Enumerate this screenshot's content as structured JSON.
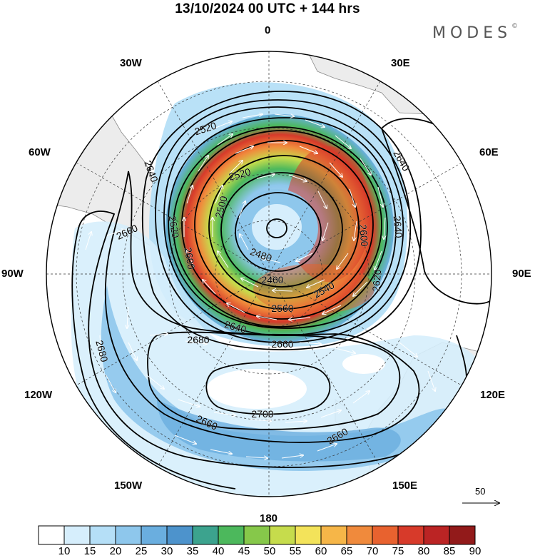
{
  "title": "13/10/2024  00 UTC  + 144 hrs",
  "brand": "MODES",
  "brand_mark": "©",
  "longitude_labels": {
    "lon_0": "0",
    "lon_30e": "30E",
    "lon_60e": "60E",
    "lon_90e": "90E",
    "lon_120e": "120E",
    "lon_150e": "150E",
    "lon_180": "180",
    "lon_150w": "150W",
    "lon_120w": "120W",
    "lon_90w": "90W",
    "lon_60w": "60W",
    "lon_30w": "30W"
  },
  "contour_labels": [
    "2520",
    "2520",
    "2640",
    "2620",
    "2660",
    "2500",
    "2600",
    "2480",
    "2460",
    "2600",
    "2640",
    "2620",
    "2540",
    "2560",
    "2640",
    "2660",
    "2680",
    "2700",
    "2660",
    "2680",
    "2660",
    "2640"
  ],
  "colorbar": {
    "ticks": [
      "10",
      "15",
      "20",
      "25",
      "30",
      "35",
      "40",
      "45",
      "50",
      "55",
      "60",
      "65",
      "70",
      "75",
      "80",
      "85",
      "90"
    ],
    "colors": [
      "#ffffff",
      "#d6eefc",
      "#b5dff7",
      "#8ec7ec",
      "#6aaedf",
      "#4d93cc",
      "#3ca38e",
      "#4cb85c",
      "#86c84a",
      "#c6dc4c",
      "#f3e35a",
      "#f6b648",
      "#f08a3c",
      "#e8622f",
      "#d73a2a",
      "#bb2424",
      "#921a1a"
    ]
  },
  "reference_vector": {
    "label": "50",
    "value": 50
  },
  "colors": {
    "land": "#ececec",
    "coast": "#8a8a8a",
    "contour": "#000000",
    "graticule": "#333333"
  }
}
